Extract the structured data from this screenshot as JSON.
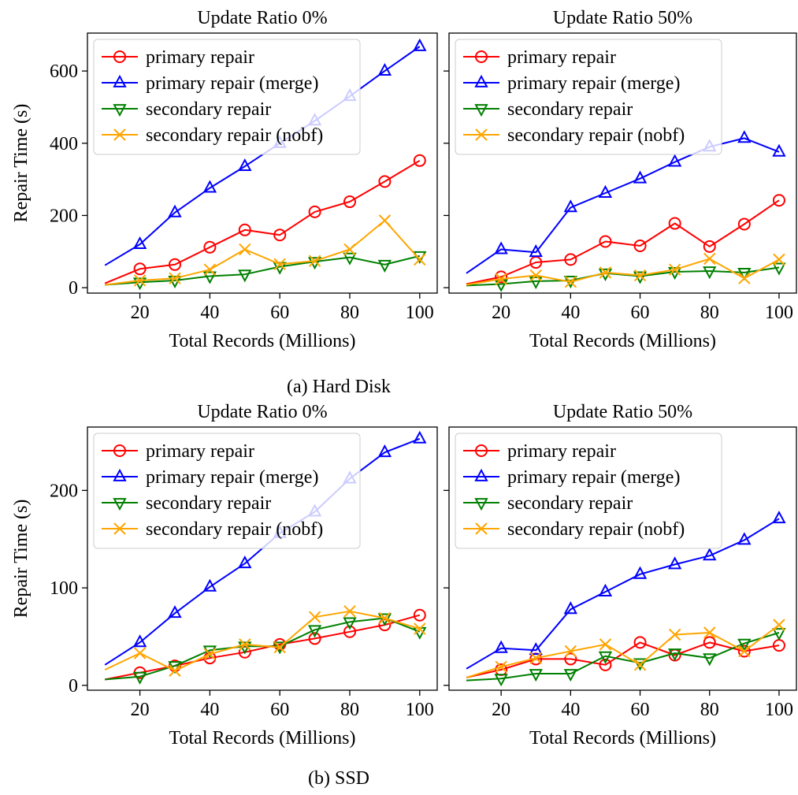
{
  "figure": {
    "groups": [
      {
        "caption": "(a) Hard Disk",
        "panels": [
          0,
          1
        ]
      },
      {
        "caption": "(b) SSD",
        "panels": [
          2,
          3
        ]
      }
    ],
    "ylabel": "Repair Time (s)",
    "xlabel": "Total Records (Millions)"
  },
  "series_styles": [
    {
      "name": "primary repair",
      "color": "#ff0000",
      "marker": "circle"
    },
    {
      "name": "primary repair (merge)",
      "color": "#0000ff",
      "marker": "triangle-up"
    },
    {
      "name": "secondary repair",
      "color": "#008000",
      "marker": "triangle-down"
    },
    {
      "name": "secondary repair (nobf)",
      "color": "#ffa500",
      "marker": "x"
    }
  ],
  "chart_data": [
    {
      "type": "line",
      "title": "Update Ratio 0%",
      "xlabel": "Total Records (Millions)",
      "ylabel": "Repair Time (s)",
      "x": [
        10,
        20,
        30,
        40,
        50,
        60,
        70,
        80,
        90,
        100
      ],
      "xlim": [
        5,
        105
      ],
      "ylim": [
        -15,
        705
      ],
      "xticks": [
        20,
        40,
        60,
        80,
        100
      ],
      "yticks": [
        0,
        200,
        400,
        600
      ],
      "legend": "top-left",
      "series": [
        {
          "name": "primary repair",
          "values": [
            12,
            52,
            64,
            112,
            160,
            146,
            210,
            238,
            294,
            352
          ]
        },
        {
          "name": "primary repair (merge)",
          "values": [
            62,
            120,
            208,
            276,
            336,
            400,
            462,
            530,
            600,
            668
          ]
        },
        {
          "name": "secondary repair",
          "values": [
            8,
            15,
            20,
            32,
            37,
            58,
            72,
            84,
            64,
            88
          ]
        },
        {
          "name": "secondary repair (nobf)",
          "values": [
            8,
            20,
            26,
            50,
            106,
            65,
            74,
            106,
            186,
            78
          ]
        }
      ]
    },
    {
      "type": "line",
      "title": "Update Ratio 50%",
      "xlabel": "Total Records (Millions)",
      "ylabel": "",
      "x": [
        10,
        20,
        30,
        40,
        50,
        60,
        70,
        80,
        90,
        100
      ],
      "xlim": [
        5,
        105
      ],
      "ylim": [
        -15,
        705
      ],
      "xticks": [
        20,
        40,
        60,
        80,
        100
      ],
      "yticks": [
        0,
        200,
        400,
        600
      ],
      "legend": "top-left",
      "series": [
        {
          "name": "primary repair",
          "values": [
            10,
            30,
            70,
            78,
            128,
            116,
            178,
            114,
            176,
            242
          ]
        },
        {
          "name": "primary repair (merge)",
          "values": [
            40,
            106,
            98,
            222,
            262,
            302,
            348,
            390,
            414,
            376
          ]
        },
        {
          "name": "secondary repair",
          "values": [
            6,
            10,
            18,
            20,
            40,
            32,
            44,
            46,
            42,
            56
          ]
        },
        {
          "name": "secondary repair (nobf)",
          "values": [
            8,
            24,
            34,
            16,
            42,
            34,
            50,
            80,
            26,
            78
          ]
        }
      ]
    },
    {
      "type": "line",
      "title": "Update Ratio 0%",
      "xlabel": "Total Records (Millions)",
      "ylabel": "Repair Time (s)",
      "x": [
        10,
        20,
        30,
        40,
        50,
        60,
        70,
        80,
        90,
        100
      ],
      "xlim": [
        5,
        105
      ],
      "ylim": [
        -5,
        265
      ],
      "xticks": [
        20,
        40,
        60,
        80,
        100
      ],
      "yticks": [
        0,
        100,
        200
      ],
      "legend": "top-left",
      "series": [
        {
          "name": "primary repair",
          "values": [
            6,
            13,
            20,
            28,
            34,
            42,
            48,
            55,
            62,
            72
          ]
        },
        {
          "name": "primary repair (merge)",
          "values": [
            21,
            44,
            74,
            101,
            125,
            156,
            178,
            212,
            239,
            253
          ]
        },
        {
          "name": "secondary repair",
          "values": [
            6,
            9,
            20,
            36,
            40,
            40,
            57,
            65,
            69,
            55
          ]
        },
        {
          "name": "secondary repair (nobf)",
          "values": [
            16,
            33,
            15,
            32,
            42,
            39,
            70,
            76,
            69,
            58
          ]
        }
      ]
    },
    {
      "type": "line",
      "title": "Update Ratio 50%",
      "xlabel": "Total Records (Millions)",
      "ylabel": "",
      "x": [
        10,
        20,
        30,
        40,
        50,
        60,
        70,
        80,
        90,
        100
      ],
      "xlim": [
        5,
        105
      ],
      "ylim": [
        -5,
        265
      ],
      "xticks": [
        20,
        40,
        60,
        80,
        100
      ],
      "yticks": [
        0,
        100,
        200
      ],
      "legend": "top-left",
      "series": [
        {
          "name": "primary repair",
          "values": [
            8,
            16,
            27,
            27,
            21,
            44,
            31,
            44,
            35,
            41
          ]
        },
        {
          "name": "primary repair (merge)",
          "values": [
            17,
            38,
            36,
            78,
            96,
            114,
            124,
            133,
            149,
            171
          ]
        },
        {
          "name": "secondary repair",
          "values": [
            5,
            7,
            12,
            12,
            30,
            23,
            33,
            28,
            43,
            54
          ]
        },
        {
          "name": "secondary repair (nobf)",
          "values": [
            8,
            19,
            28,
            35,
            42,
            21,
            52,
            54,
            35,
            62
          ]
        }
      ]
    }
  ]
}
